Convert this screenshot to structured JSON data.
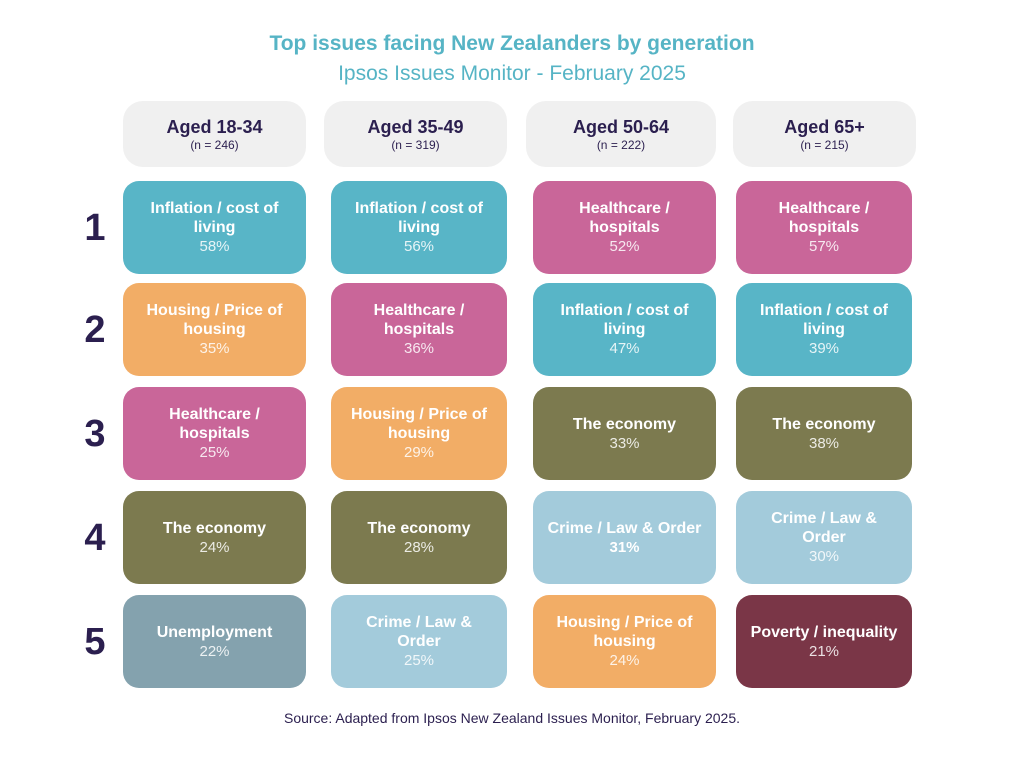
{
  "chart_data": {
    "type": "table",
    "title": "Top issues facing New Zealanders by generation",
    "subtitle": "Ipsos Issues Monitor - February 2025",
    "source": "Source: Adapted from Ipsos New Zealand Issues Monitor, February 2025.",
    "ranks": [
      "1",
      "2",
      "3",
      "4",
      "5"
    ],
    "colors": {
      "Inflation / cost of living": "#58b5c7",
      "Healthcare / hospitals": "#c96699",
      "Housing / Price of housing": "#f2ad66",
      "The economy": "#7c7a4f",
      "Crime / Law & Order": "#a3cbdb",
      "Unemployment": "#84a2ae",
      "Poverty / inequality": "#7a3647"
    },
    "groups": [
      {
        "label": "Aged 18-34",
        "n": "(n = 246)",
        "issues": [
          {
            "rank": 1,
            "issue": "Inflation / cost of living",
            "value": 58,
            "value_text": "58%"
          },
          {
            "rank": 2,
            "issue": "Housing / Price of housing",
            "value": 35,
            "value_text": "35%"
          },
          {
            "rank": 3,
            "issue": "Healthcare / hospitals",
            "value": 25,
            "value_text": "25%"
          },
          {
            "rank": 4,
            "issue": "The economy",
            "value": 24,
            "value_text": "24%"
          },
          {
            "rank": 5,
            "issue": "Unemployment",
            "value": 22,
            "value_text": "22%"
          }
        ]
      },
      {
        "label": "Aged 35-49",
        "n": "(n = 319)",
        "issues": [
          {
            "rank": 1,
            "issue": "Inflation / cost of living",
            "value": 56,
            "value_text": "56%"
          },
          {
            "rank": 2,
            "issue": "Healthcare / hospitals",
            "value": 36,
            "value_text": "36%"
          },
          {
            "rank": 3,
            "issue": "Housing / Price of housing",
            "value": 29,
            "value_text": "29%"
          },
          {
            "rank": 4,
            "issue": "The economy",
            "value": 28,
            "value_text": "28%"
          },
          {
            "rank": 5,
            "issue": "Crime / Law & Order",
            "value": 25,
            "value_text": "25%"
          }
        ]
      },
      {
        "label": "Aged 50-64",
        "n": "(n = 222)",
        "issues": [
          {
            "rank": 1,
            "issue": "Healthcare / hospitals",
            "value": 52,
            "value_text": "52%"
          },
          {
            "rank": 2,
            "issue": "Inflation / cost of living",
            "value": 47,
            "value_text": "47%"
          },
          {
            "rank": 3,
            "issue": "The economy",
            "value": 33,
            "value_text": "33%"
          },
          {
            "rank": 4,
            "issue": "Crime / Law & Order",
            "value": 31,
            "value_text": "31%",
            "bold": true
          },
          {
            "rank": 5,
            "issue": "Housing / Price of housing",
            "value": 24,
            "value_text": "24%"
          }
        ]
      },
      {
        "label": "Aged 65+",
        "n": "(n = 215)",
        "issues": [
          {
            "rank": 1,
            "issue": "Healthcare / hospitals",
            "value": 57,
            "value_text": "57%"
          },
          {
            "rank": 2,
            "issue": "Inflation / cost of living",
            "value": 39,
            "value_text": "39%"
          },
          {
            "rank": 3,
            "issue": "The economy",
            "value": 38,
            "value_text": "38%"
          },
          {
            "rank": 4,
            "issue": "Crime / Law & Order",
            "value": 30,
            "value_text": "30%"
          },
          {
            "rank": 5,
            "issue": "Poverty / inequality",
            "value": 21,
            "value_text": "21%"
          }
        ]
      }
    ]
  }
}
